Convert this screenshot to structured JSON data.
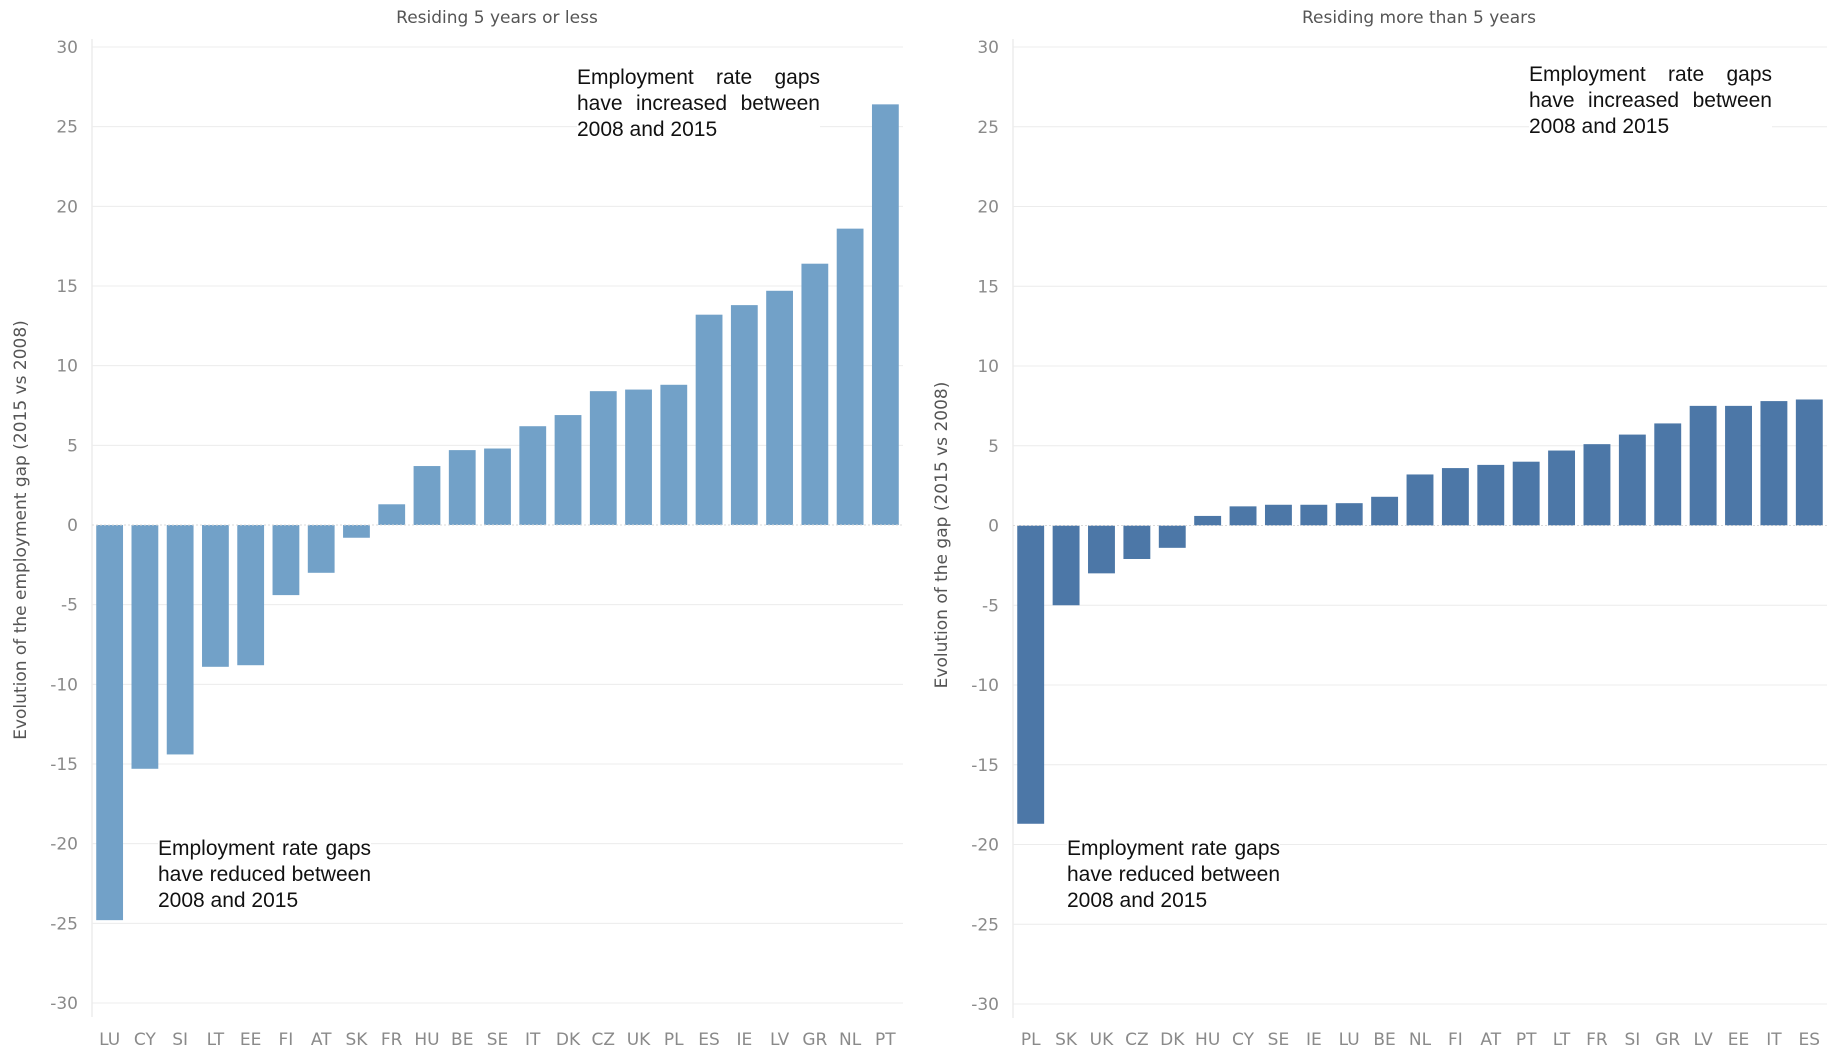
{
  "colors": {
    "left_bars": "#72a1c8",
    "right_bars": "#4c77a7"
  },
  "chart_data": [
    {
      "type": "bar",
      "title": "Residing 5 years or less",
      "ylabel": "Evolution of the employment  gap (2015 vs 2008)",
      "ylim": [
        -30,
        30
      ],
      "yticks": [
        30,
        25,
        20,
        15,
        10,
        5,
        0,
        -5,
        -10,
        -15,
        -20,
        -25,
        -30
      ],
      "grid": true,
      "categories": [
        "LU",
        "CY",
        "SI",
        "LT",
        "EE",
        "FI",
        "AT",
        "SK",
        "FR",
        "HU",
        "BE",
        "SE",
        "IT",
        "DK",
        "CZ",
        "UK",
        "PL",
        "ES",
        "IE",
        "LV",
        "GR",
        "NL",
        "PT"
      ],
      "values": [
        -24.8,
        -15.3,
        -14.4,
        -8.9,
        -8.8,
        -4.4,
        -3.0,
        -0.8,
        1.3,
        3.7,
        4.7,
        4.8,
        6.2,
        6.9,
        8.4,
        8.5,
        8.8,
        13.2,
        13.8,
        14.7,
        16.4,
        18.6,
        26.4
      ],
      "annotations": [
        "Employment rate gaps have increased between 2008 and 2015",
        "Employment rate gaps have reduced between 2008 and 2015"
      ]
    },
    {
      "type": "bar",
      "title": "Residing more than 5 years",
      "ylabel": "Evolution of the gap (2015 vs 2008)",
      "ylim": [
        -30,
        30
      ],
      "yticks": [
        30,
        25,
        20,
        15,
        10,
        5,
        0,
        -5,
        -10,
        -15,
        -20,
        -25,
        -30
      ],
      "grid": true,
      "categories": [
        "PL",
        "SK",
        "UK",
        "CZ",
        "DK",
        "HU",
        "CY",
        "SE",
        "IE",
        "LU",
        "BE",
        "NL",
        "FI",
        "AT",
        "PT",
        "LT",
        "FR",
        "SI",
        "GR",
        "LV",
        "EE",
        "IT",
        "ES"
      ],
      "values": [
        -18.7,
        -5.0,
        -3.0,
        -2.1,
        -1.4,
        0.6,
        1.2,
        1.3,
        1.3,
        1.4,
        1.8,
        3.2,
        3.6,
        3.8,
        4.0,
        4.7,
        5.1,
        5.7,
        6.4,
        7.5,
        7.5,
        7.8,
        7.9
      ],
      "annotations": [
        "Employment rate gaps have increased between 2008 and 2015",
        "Employment rate gaps have reduced between 2008 and 2015"
      ]
    }
  ]
}
